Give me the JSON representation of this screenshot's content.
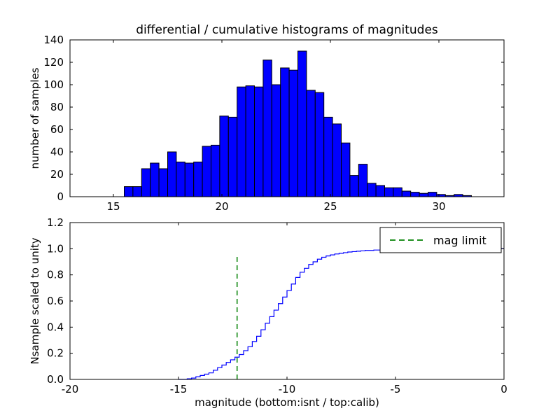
{
  "figure": {
    "background": "#ffffff"
  },
  "chart_data": [
    {
      "type": "bar",
      "name": "differential-histogram",
      "title": "differential / cumulative histograms of magnitudes",
      "ylabel": "number of samples",
      "xlim": [
        13,
        33
      ],
      "ylim": [
        0,
        140
      ],
      "xtick_values": [
        15,
        20,
        25,
        30
      ],
      "xtick_labels": [
        "15",
        "20",
        "25",
        "30"
      ],
      "ytick_values": [
        0,
        20,
        40,
        60,
        80,
        100,
        120,
        140
      ],
      "ytick_labels": [
        "0",
        "20",
        "40",
        "60",
        "80",
        "100",
        "120",
        "140"
      ],
      "bar_fill": "#0000ff",
      "bar_edge": "#000000",
      "bin_start": 15.5,
      "bin_width": 0.4,
      "counts": [
        9,
        9,
        25,
        30,
        25,
        40,
        31,
        30,
        31,
        45,
        46,
        72,
        71,
        98,
        99,
        98,
        122,
        100,
        115,
        113,
        130,
        95,
        93,
        71,
        65,
        48,
        19,
        29,
        12,
        10,
        8,
        8,
        5,
        4,
        3,
        4,
        2,
        1,
        2,
        1
      ],
      "grid": false
    },
    {
      "type": "line",
      "name": "cumulative-histogram",
      "ylabel": "Nsample scaled to unity",
      "xlabel": "magnitude (bottom:isnt / top:calib)",
      "xlim": [
        -20,
        0
      ],
      "ylim": [
        0,
        1.2
      ],
      "xtick_values": [
        -20,
        -15,
        -10,
        -5,
        0
      ],
      "xtick_labels": [
        "-20",
        "-15",
        "-10",
        "-5",
        "0"
      ],
      "ytick_values": [
        0,
        0.2,
        0.4,
        0.6,
        0.8,
        1.0,
        1.2
      ],
      "ytick_labels": [
        "0.0",
        "0.2",
        "0.4",
        "0.6",
        "0.8",
        "1.0",
        "1.2"
      ],
      "line_color": "#0000ff",
      "line_style": "step",
      "x": [
        -15,
        -14.6,
        -14.4,
        -14.2,
        -14,
        -13.8,
        -13.6,
        -13.4,
        -13.2,
        -13,
        -12.8,
        -12.6,
        -12.4,
        -12.2,
        -12,
        -11.8,
        -11.6,
        -11.4,
        -11.2,
        -11,
        -10.8,
        -10.6,
        -10.4,
        -10.2,
        -10,
        -9.8,
        -9.6,
        -9.4,
        -9.2,
        -9,
        -8.8,
        -8.6,
        -8.4,
        -8.2,
        -8,
        -7.8,
        -7.6,
        -7.4,
        -7.2,
        -7,
        -6.8,
        -6.6,
        -6.4,
        -6,
        -5.6,
        -5.2,
        -4.8,
        -4.4,
        -4,
        -3,
        0
      ],
      "y": [
        0,
        0.005,
        0.01,
        0.02,
        0.03,
        0.04,
        0.05,
        0.07,
        0.09,
        0.11,
        0.13,
        0.15,
        0.17,
        0.19,
        0.22,
        0.25,
        0.29,
        0.33,
        0.38,
        0.43,
        0.48,
        0.53,
        0.58,
        0.63,
        0.68,
        0.73,
        0.78,
        0.82,
        0.85,
        0.88,
        0.9,
        0.92,
        0.935,
        0.945,
        0.953,
        0.96,
        0.965,
        0.97,
        0.975,
        0.978,
        0.981,
        0.984,
        0.987,
        0.99,
        0.992,
        0.994,
        0.996,
        0.997,
        0.998,
        1.0,
        1.0
      ],
      "mag_limit": {
        "x": -12.3,
        "y_bottom": 0,
        "y_top": 0.96,
        "color": "#008000"
      },
      "legend": {
        "position": "upper right",
        "entries": [
          {
            "label": "mag limit",
            "color": "#008000",
            "style": "dashed"
          }
        ]
      },
      "grid": false
    }
  ]
}
